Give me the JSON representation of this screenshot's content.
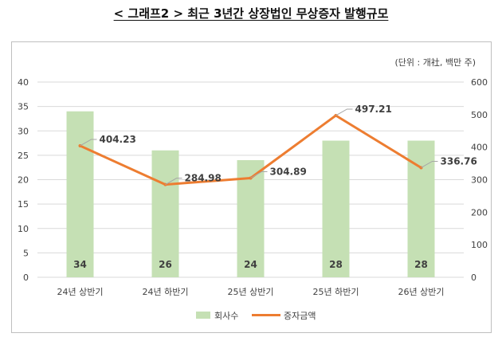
{
  "title": "< 그래프2 > 최근 3년간 상장법인 무상증자 발행규모",
  "unit_note": "(단위 : 개社, 백만 주)",
  "chart_data": {
    "type": "bar",
    "categories": [
      "24년 상반기",
      "24년 하반기",
      "25년 상반기",
      "25년 하반기",
      "26년 상반기"
    ],
    "series": [
      {
        "name": "회사수",
        "type": "bar",
        "axis": "left",
        "color": "#c5e0b4",
        "values": [
          34,
          26,
          24,
          28,
          28
        ]
      },
      {
        "name": "증자금액",
        "type": "line",
        "axis": "right",
        "color": "#ed7d31",
        "values": [
          404.23,
          284.98,
          304.89,
          497.21,
          336.76
        ]
      }
    ],
    "y_left": {
      "min": 0,
      "max": 40,
      "ticks": [
        0,
        5,
        10,
        15,
        20,
        25,
        30,
        35,
        40
      ]
    },
    "y_right": {
      "min": 0,
      "max": 600,
      "ticks": [
        0,
        100,
        200,
        300,
        400,
        500,
        600
      ]
    },
    "bar_labels": [
      "34",
      "26",
      "24",
      "28",
      "28"
    ],
    "line_labels": [
      "404.23",
      "284.98",
      "304.89",
      "497.21",
      "336.76"
    ],
    "grid": true,
    "legend_position": "bottom"
  }
}
